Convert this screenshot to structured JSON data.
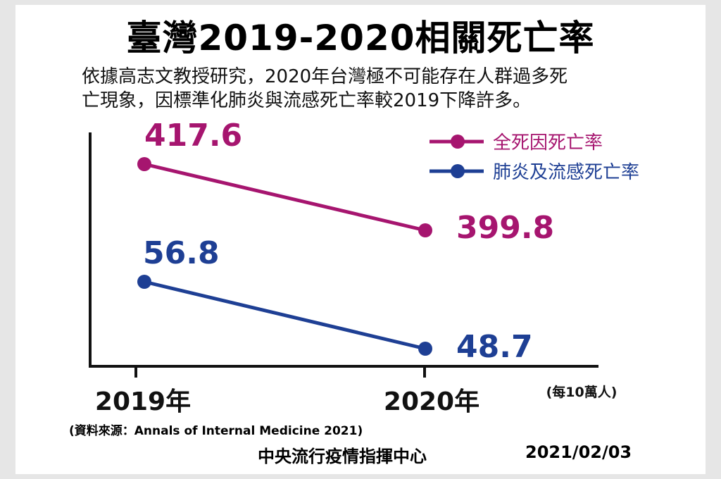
{
  "title": "臺灣2019-2020相關死亡率",
  "subtitle_lines": [
    "依據高志文教授研究，2020年台灣極不可能存在人群過多死",
    "亡現象，因標準化肺炎與流感死亡率較2019下降許多。"
  ],
  "source": "(資料來源：Annals of Internal Medicine 2021)",
  "footer": {
    "org": "中央流行疫情指揮中心",
    "date": "2021/02/03"
  },
  "chart_data": {
    "type": "line",
    "categories": [
      "2019年",
      "2020年"
    ],
    "unit_label": "(每10萬人)",
    "series": [
      {
        "name": "全死因死亡率",
        "values": [
          417.6,
          399.8
        ],
        "labels": [
          "417.6",
          "399.8"
        ],
        "color": "#a6156f"
      },
      {
        "name": "肺炎及流感死亡率",
        "values": [
          56.8,
          48.7
        ],
        "labels": [
          "56.8",
          "48.7"
        ],
        "color": "#1e3f94"
      }
    ],
    "legend": "top-right",
    "grid": false
  }
}
